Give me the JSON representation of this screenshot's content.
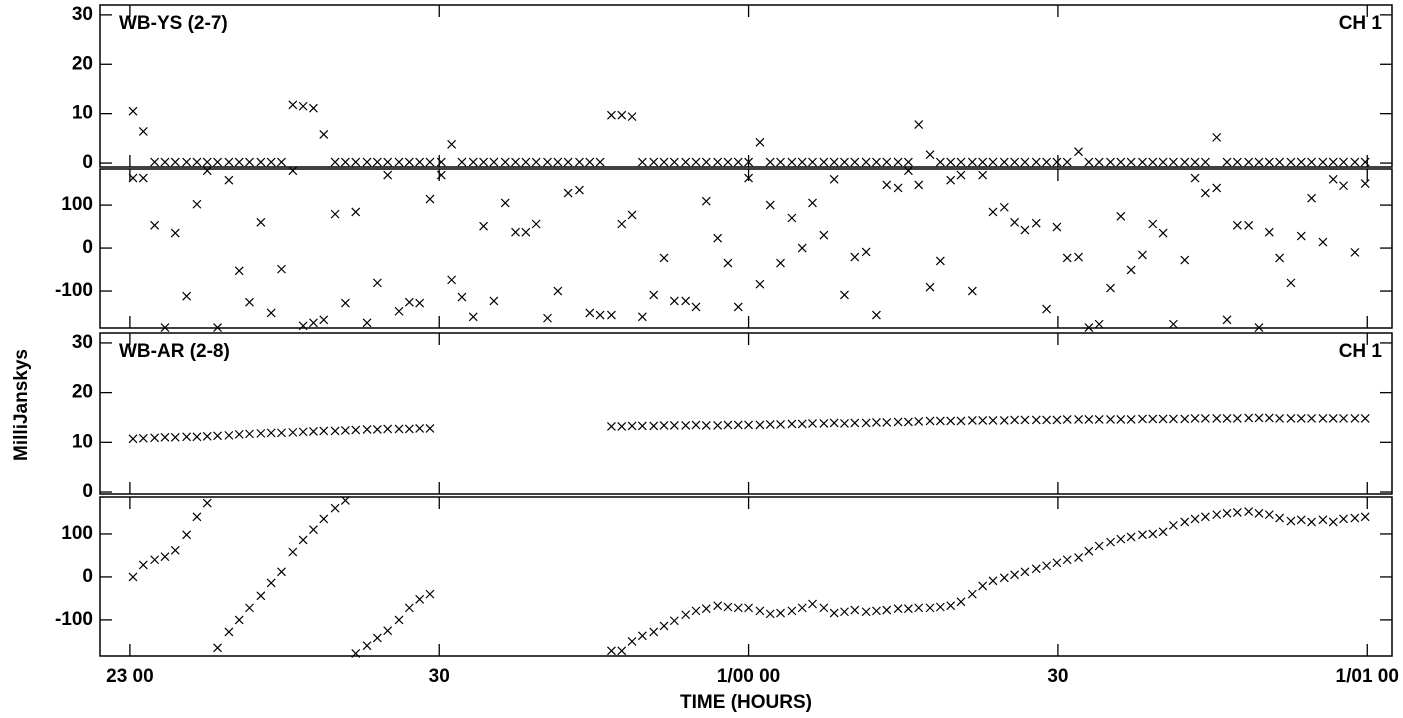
{
  "chart_data": {
    "type": "scatter",
    "xlabel": "TIME (HOURS)",
    "ylabel": "MilliJanskys",
    "xlim": [
      -2.9,
      122.4
    ],
    "xticks": [
      {
        "value": 0,
        "label": "23 00"
      },
      30,
      {
        "value": 60,
        "label": "1/00 00"
      },
      {
        "value": 90,
        "label": "30"
      },
      {
        "value": 120,
        "label": "1/01 00"
      }
    ],
    "color": "#000000",
    "x": [
      0.3,
      1.3,
      2.4,
      3.4,
      4.4,
      5.5,
      6.5,
      7.5,
      8.5,
      9.6,
      10.6,
      11.6,
      12.7,
      13.7,
      14.7,
      15.8,
      16.8,
      17.8,
      18.8,
      19.9,
      20.9,
      21.9,
      23.0,
      24.0,
      25.0,
      26.1,
      27.1,
      28.1,
      29.1,
      30.2,
      31.2,
      32.2,
      33.3,
      34.3,
      35.3,
      36.4,
      37.4,
      38.4,
      39.4,
      40.5,
      41.5,
      42.5,
      43.6,
      44.6,
      45.6,
      46.7,
      47.7,
      48.7,
      49.7,
      50.8,
      51.8,
      52.8,
      53.9,
      54.9,
      55.9,
      57.0,
      58.0,
      59.0,
      60.0,
      61.1,
      62.1,
      63.1,
      64.2,
      65.2,
      66.2,
      67.3,
      68.3,
      69.3,
      70.3,
      71.4,
      72.4,
      73.4,
      74.5,
      75.5,
      76.5,
      77.6,
      78.6,
      79.6,
      80.6,
      81.7,
      82.7,
      83.7,
      84.8,
      85.8,
      86.8,
      87.9,
      88.9,
      89.9,
      90.9,
      92.0,
      93.0,
      94.0,
      95.1,
      96.1,
      97.1,
      98.2,
      99.2,
      100.2,
      101.2,
      102.3,
      103.3,
      104.3,
      105.4,
      106.4,
      107.4,
      108.5,
      109.5,
      110.5,
      111.5,
      112.6,
      113.6,
      114.6,
      115.7,
      116.7,
      117.7,
      118.8,
      119.8
    ],
    "baselines": [
      {
        "title": "WB-YS (2-7)",
        "channel": "CH 1",
        "amplitude": {
          "ylim": [
            -0.8,
            32
          ],
          "yticks": [
            0,
            10,
            20,
            30
          ],
          "values": [
            10.5,
            6.4,
            0.2,
            0.2,
            0.2,
            0.2,
            0.2,
            0.2,
            0.2,
            0.2,
            0.2,
            0.2,
            0.2,
            0.2,
            0.2,
            11.8,
            11.5,
            11.1,
            5.8,
            0.2,
            0.2,
            0.2,
            0.2,
            0.2,
            0.2,
            0.2,
            0.2,
            0.2,
            0.2,
            0.2,
            3.8,
            0.2,
            0.2,
            0.2,
            0.2,
            0.2,
            0.2,
            0.2,
            0.2,
            0.2,
            0.2,
            0.2,
            0.2,
            0.2,
            0.2,
            9.7,
            9.7,
            9.4,
            0.2,
            0.2,
            0.2,
            0.2,
            0.2,
            0.2,
            0.2,
            0.2,
            0.2,
            0.2,
            0.2,
            4.2,
            0.2,
            0.2,
            0.2,
            0.2,
            0.2,
            0.2,
            0.2,
            0.2,
            0.2,
            0.2,
            0.2,
            0.2,
            0.2,
            0.2,
            7.8,
            1.7,
            0.2,
            0.2,
            0.2,
            0.2,
            0.2,
            0.2,
            0.2,
            0.2,
            0.2,
            0.2,
            0.2,
            0.2,
            0.2,
            2.3,
            0.2,
            0.2,
            0.2,
            0.2,
            0.2,
            0.2,
            0.2,
            0.2,
            0.2,
            0.2,
            0.2,
            0.2,
            5.2,
            0.2,
            0.2,
            0.2,
            0.2,
            0.2,
            0.2,
            0.2,
            0.2,
            0.2,
            0.2,
            0.2,
            0.2,
            0.2,
            0.2
          ]
        },
        "phase": {
          "ylim": [
            -186,
            184
          ],
          "yticks": [
            -100,
            0,
            100
          ],
          "values": [
            163,
            163,
            53,
            -185,
            35,
            -112,
            102,
            180,
            -185,
            158,
            -53,
            -126,
            60,
            -151,
            -49,
            180,
            -181,
            -174,
            -167,
            79,
            -128,
            84,
            -174,
            -81,
            170,
            -147,
            -126,
            -128,
            114,
            170,
            -74,
            -114,
            -160,
            51,
            -123,
            105,
            37,
            37,
            56,
            -163,
            -100,
            128,
            135,
            -151,
            -156,
            -156,
            56,
            77,
            -160,
            -109,
            -23,
            -123,
            -123,
            -137,
            109,
            23,
            -35,
            -137,
            163,
            -84,
            100,
            -35,
            70,
            0,
            105,
            30,
            160,
            -109,
            -21,
            -9,
            -156,
            147,
            140,
            180,
            147,
            -91,
            -30,
            158,
            170,
            -100,
            170,
            84,
            95,
            60,
            42,
            58,
            -142,
            49,
            -23,
            -21,
            -185,
            -177,
            -93,
            74,
            -51,
            -16,
            56,
            35,
            -177,
            -28,
            163,
            128,
            140,
            -167,
            53,
            53,
            -185,
            37,
            -23,
            -81,
            28,
            116,
            14,
            160,
            145,
            -10,
            150
          ]
        }
      },
      {
        "title": "WB-AR (2-8)",
        "channel": "CH 1",
        "amplitude": {
          "ylim": [
            -0.4,
            32
          ],
          "yticks": [
            0,
            10,
            20,
            30
          ],
          "values": [
            10.7,
            10.8,
            10.9,
            11.0,
            11.0,
            11.1,
            11.1,
            11.2,
            11.3,
            11.4,
            11.6,
            11.7,
            11.8,
            11.9,
            11.9,
            12.0,
            12.1,
            12.2,
            12.3,
            12.3,
            12.4,
            12.5,
            12.6,
            12.6,
            12.7,
            12.7,
            12.7,
            12.8,
            12.8,
            null,
            null,
            null,
            null,
            null,
            null,
            null,
            null,
            null,
            null,
            null,
            null,
            null,
            null,
            null,
            null,
            13.2,
            13.2,
            13.3,
            13.3,
            13.3,
            13.4,
            13.4,
            13.4,
            13.5,
            13.4,
            13.4,
            13.5,
            13.5,
            13.5,
            13.5,
            13.6,
            13.6,
            13.7,
            13.7,
            13.8,
            13.8,
            13.9,
            13.8,
            13.9,
            13.9,
            14.0,
            14.0,
            14.1,
            14.1,
            14.2,
            14.3,
            14.3,
            14.3,
            14.3,
            14.4,
            14.4,
            14.4,
            14.4,
            14.5,
            14.5,
            14.5,
            14.5,
            14.5,
            14.6,
            14.6,
            14.6,
            14.6,
            14.6,
            14.6,
            14.6,
            14.7,
            14.7,
            14.7,
            14.7,
            14.7,
            14.8,
            14.8,
            14.8,
            14.8,
            14.8,
            14.9,
            14.9,
            14.9,
            14.8,
            14.8,
            14.8,
            14.8,
            14.8,
            14.8,
            14.8,
            14.8,
            14.8
          ]
        },
        "phase": {
          "ylim": [
            -184,
            186
          ],
          "yticks": [
            -100,
            0,
            100
          ],
          "values": [
            0,
            28,
            40,
            47,
            62,
            98,
            140,
            172,
            -165,
            -128,
            -100,
            -72,
            -44,
            -14,
            12,
            58,
            86,
            110,
            135,
            160,
            178,
            -178,
            -160,
            -142,
            -125,
            -100,
            -72,
            -52,
            -40,
            null,
            null,
            null,
            null,
            null,
            null,
            null,
            null,
            null,
            null,
            null,
            null,
            null,
            null,
            null,
            null,
            -172,
            -172,
            -150,
            -137,
            -128,
            -114,
            -102,
            -88,
            -79,
            -74,
            -67,
            -70,
            -72,
            -72,
            -79,
            -86,
            -84,
            -79,
            -72,
            -63,
            -72,
            -84,
            -81,
            -77,
            -81,
            -79,
            -77,
            -74,
            -74,
            -72,
            -72,
            -70,
            -67,
            -58,
            -40,
            -21,
            -9,
            -2,
            5,
            12,
            19,
            26,
            33,
            40,
            45,
            60,
            72,
            81,
            88,
            93,
            98,
            100,
            105,
            120,
            128,
            135,
            140,
            145,
            148,
            150,
            152,
            148,
            145,
            137,
            130,
            133,
            128,
            133,
            128,
            135,
            137,
            140
          ]
        }
      }
    ]
  }
}
